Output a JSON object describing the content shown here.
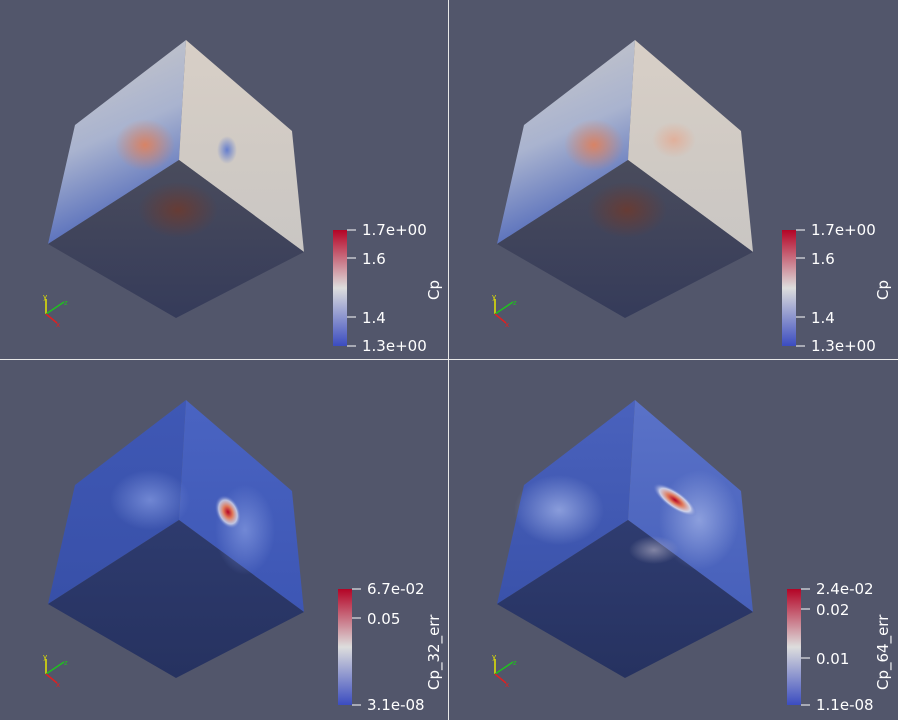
{
  "views": [
    {
      "id": "v0",
      "array": "Cp",
      "bar_labels": [
        "1.7e+00",
        "1.6",
        "1.4",
        "1.3e+00"
      ],
      "colors": {
        "low": "#3b4cc0",
        "mid": "#dddddd",
        "high": "#b40426"
      },
      "field": "cp32"
    },
    {
      "id": "v1",
      "array": "Cp",
      "bar_labels": [
        "1.7e+00",
        "1.6",
        "1.4",
        "1.3e+00"
      ],
      "colors": {
        "low": "#3b4cc0",
        "mid": "#dddddd",
        "high": "#b40426"
      },
      "field": "cp64"
    },
    {
      "id": "v2",
      "array": "Cp_32_err",
      "bar_labels": [
        "6.7e-02",
        "0.05",
        "3.1e-08"
      ],
      "colors": {
        "low": "#3b4cc0",
        "mid": "#dddddd",
        "high": "#b40426"
      },
      "field": "err32"
    },
    {
      "id": "v3",
      "array": "Cp_64_err",
      "bar_labels": [
        "2.4e-02",
        "0.02",
        "0.01",
        "1.1e-08"
      ],
      "colors": {
        "low": "#3b4cc0",
        "mid": "#dddddd",
        "high": "#b40426"
      },
      "field": "err64"
    }
  ],
  "axes_glyph": {
    "x": "x",
    "y": "y",
    "z": "z"
  }
}
